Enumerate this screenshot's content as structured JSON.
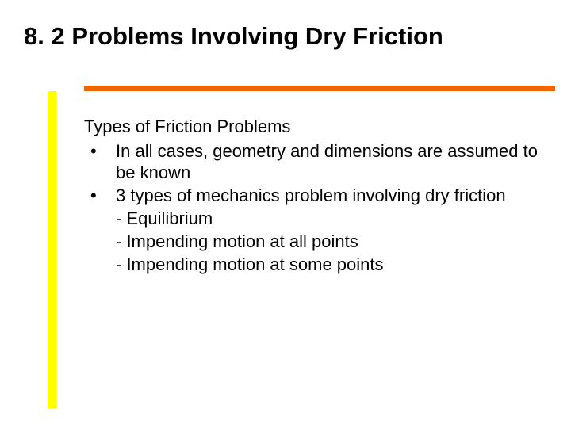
{
  "title": {
    "text": "8. 2 Problems Involving Dry Friction",
    "style": "font-size:31px; color:#000000; font-weight:bold;"
  },
  "underline": {
    "style": "top:108px; background:#ee6500; height:7px;"
  },
  "accent_bar": {
    "style": "top:115px; height:400px; background:#ffff00; width:11px;"
  },
  "body": {
    "container_style": "font-size:22px; line-height:27px; color:#000000;",
    "subheading": "Types of Friction Problems",
    "bullet_marker": "•",
    "bullets": [
      {
        "text": "In all cases, geometry and dimensions are assumed to be known"
      },
      {
        "text": "3 types of mechanics problem involving dry friction",
        "subitems": [
          "- Equilibrium",
          "-  Impending motion at all points",
          "- Impending motion at some points"
        ]
      }
    ]
  }
}
